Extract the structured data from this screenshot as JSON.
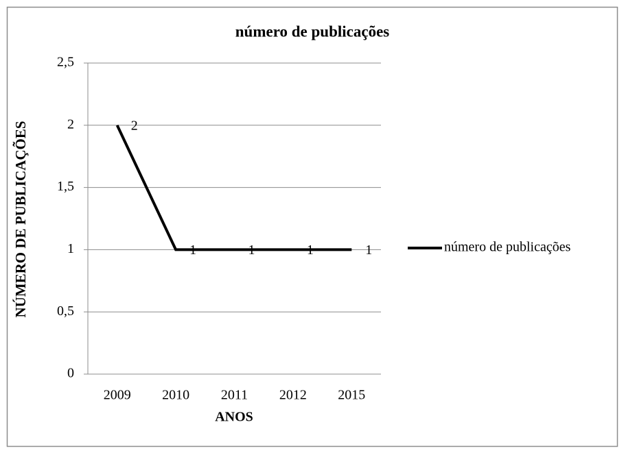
{
  "chart_data": {
    "type": "line",
    "title": "número de publicações",
    "x_label": "ANOS",
    "y_label": "NÚMERO DE PUBLICAÇÕES",
    "categories": [
      "2009",
      "2010",
      "2011",
      "2012",
      "2015"
    ],
    "series": [
      {
        "name": "número de publicações",
        "color": "#000000",
        "values": [
          2,
          1,
          1,
          1,
          1
        ]
      }
    ],
    "ylim": [
      0,
      2.5
    ],
    "yticks": [
      0,
      {
        "value": 0.5,
        "label": "0,5"
      },
      1,
      {
        "value": 1.5,
        "label": "1,5"
      },
      2,
      {
        "value": 2.5,
        "label": "2,5"
      }
    ],
    "grid": true,
    "legend": "right",
    "data_labels": true
  }
}
